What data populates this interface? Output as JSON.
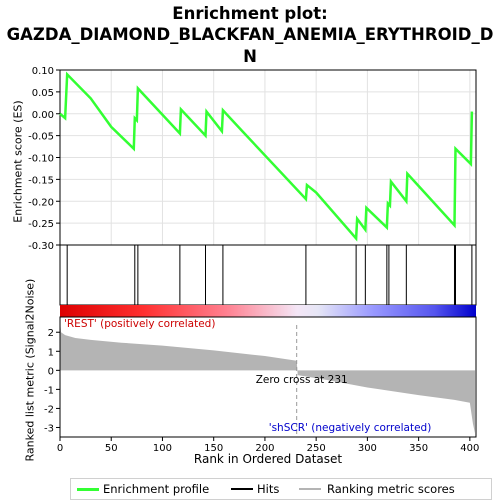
{
  "title_lines": [
    "Enrichment plot:",
    "GAZDA_DIAMOND_BLACKFAN_ANEMIA_ERYTHROID_D",
    "N"
  ],
  "colors": {
    "es_line": "#33ff33",
    "hits": "#000000",
    "metric_fill": "#b4b4b4",
    "pos_label": "#cc0000",
    "neg_label": "#0000cc"
  },
  "chart_data": [
    {
      "type": "line",
      "ylabel": "Enrichment score (ES)",
      "xlim": [
        0,
        406
      ],
      "ylim": [
        -0.3,
        0.1
      ],
      "yticks": [
        "0.10",
        "0.05",
        "0.00",
        "-0.05",
        "-0.10",
        "-0.15",
        "-0.20",
        "-0.25",
        "-0.30"
      ],
      "grid": true,
      "x": [
        0,
        5,
        7,
        30,
        50,
        72,
        73,
        75,
        76,
        117,
        118,
        142,
        143,
        158,
        159,
        178,
        240,
        241,
        250,
        289,
        290,
        298,
        299,
        319,
        320,
        322,
        323,
        338,
        339,
        348,
        385,
        386,
        401,
        402
      ],
      "y": [
        0.0,
        -0.01,
        0.09,
        0.035,
        -0.03,
        -0.08,
        -0.01,
        -0.015,
        0.058,
        -0.045,
        0.01,
        -0.05,
        0.005,
        -0.04,
        0.008,
        -0.04,
        -0.195,
        -0.163,
        -0.18,
        -0.285,
        -0.24,
        -0.265,
        -0.215,
        -0.26,
        -0.205,
        -0.21,
        -0.155,
        -0.2,
        -0.137,
        -0.16,
        -0.255,
        -0.08,
        -0.115,
        0.005
      ]
    },
    {
      "type": "hits",
      "hit_positions": [
        7,
        73,
        76,
        117,
        142,
        159,
        240,
        289,
        298,
        319,
        321,
        338,
        385,
        386,
        402
      ]
    },
    {
      "type": "area",
      "xlabel": "Rank in Ordered Dataset",
      "ylabel": "Ranked list metric (Signal2Noise)",
      "xlim": [
        0,
        406
      ],
      "ylim": [
        -3.5,
        2.8
      ],
      "yticks": [
        "2",
        "1",
        "0",
        "-1",
        "-2",
        "-3"
      ],
      "xticks": [
        "0",
        "50",
        "100",
        "150",
        "200",
        "250",
        "300",
        "350",
        "400"
      ],
      "x": [
        0,
        1,
        5,
        15,
        30,
        60,
        100,
        150,
        200,
        231,
        232,
        260,
        300,
        350,
        385,
        400,
        403,
        405
      ],
      "y": [
        2.6,
        2.0,
        1.85,
        1.7,
        1.6,
        1.45,
        1.3,
        1.05,
        0.75,
        0.5,
        -0.25,
        -0.5,
        -0.9,
        -1.3,
        -1.55,
        -1.7,
        -2.8,
        -3.3
      ],
      "zero_cross_label": "Zero cross at 231",
      "pos_label": "'REST' (positively correlated)",
      "neg_label": "'shSCR' (negatively correlated)"
    }
  ],
  "legend": {
    "items": [
      {
        "label": "Enrichment profile"
      },
      {
        "label": "Hits"
      },
      {
        "label": "Ranking metric scores"
      }
    ]
  }
}
